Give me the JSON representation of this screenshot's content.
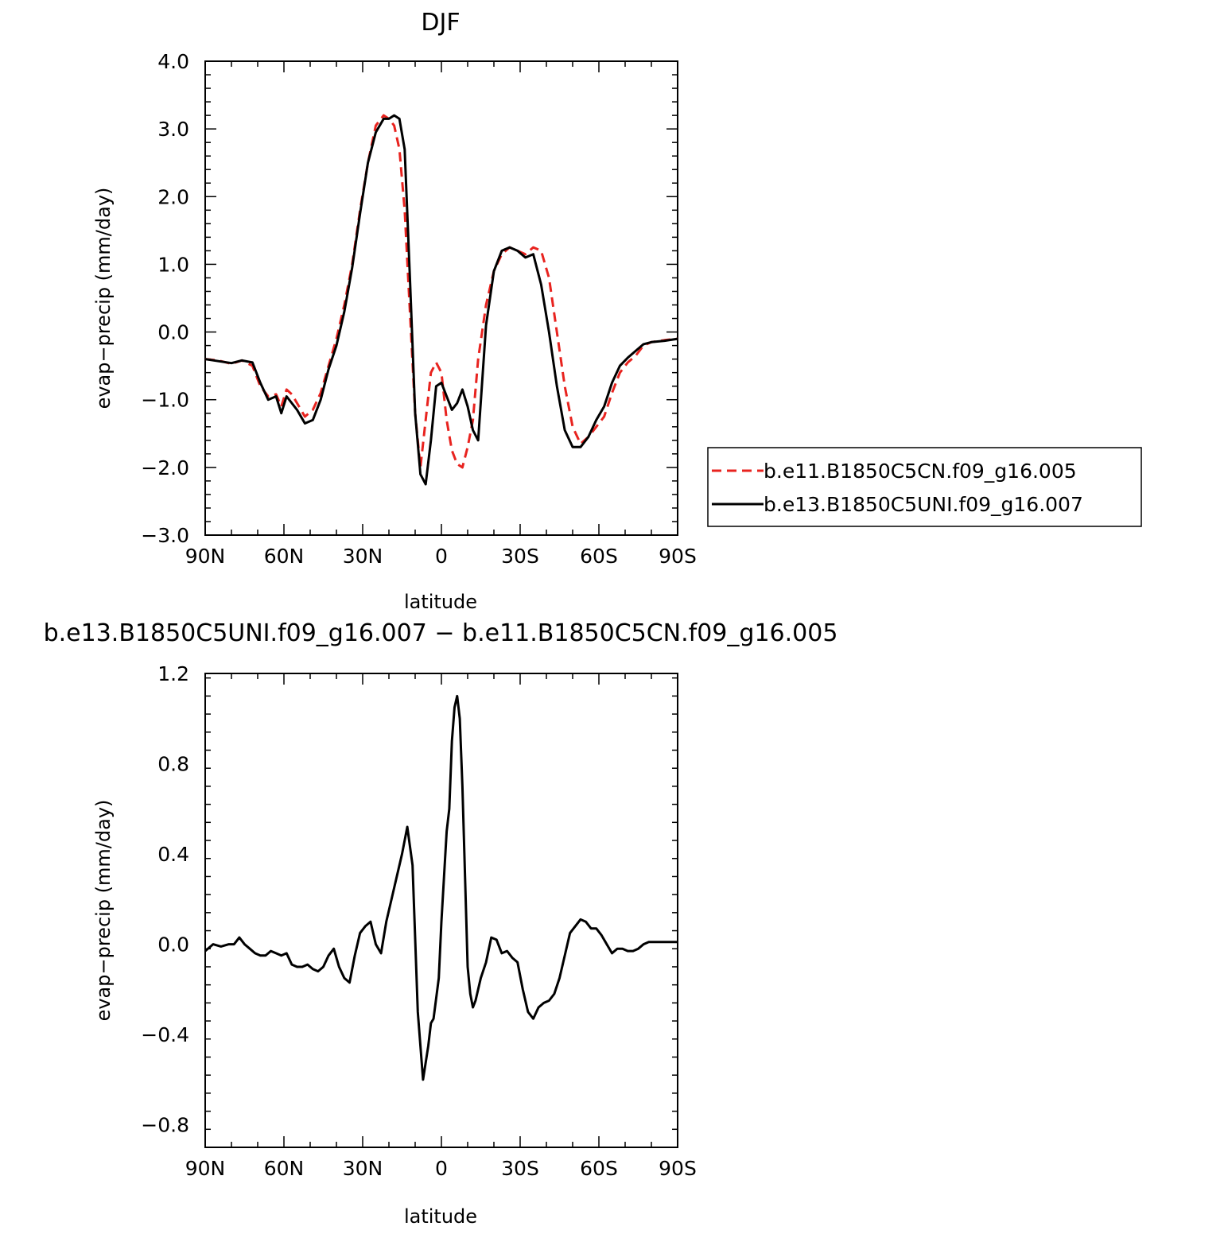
{
  "chart_data": [
    {
      "type": "line",
      "title": "DJF",
      "xlabel": "latitude",
      "ylabel": "evap−precip (mm/day)",
      "xlim": [
        90,
        -90
      ],
      "ylim": [
        -3.0,
        4.0
      ],
      "yticks": [
        -3.0,
        -2.0,
        -1.0,
        0.0,
        1.0,
        2.0,
        3.0,
        4.0
      ],
      "ytick_labels": [
        "−3.0",
        "−2.0",
        "−1.0",
        "0.0",
        "1.0",
        "2.0",
        "3.0",
        "4.0"
      ],
      "xticks": [
        90,
        60,
        30,
        0,
        -30,
        -60,
        -90
      ],
      "xtick_labels": [
        "90N",
        "60N",
        "30N",
        "0",
        "30S",
        "60S",
        "90S"
      ],
      "grid": false,
      "legend_position": "right",
      "series": [
        {
          "name": "b.e11.B1850C5CN.f09_g16.005",
          "color": "#e8231f",
          "dash": "dashed",
          "x": [
            90,
            85,
            80,
            76,
            72,
            69,
            66,
            63,
            61,
            59,
            57,
            55,
            52,
            49,
            46,
            43,
            40,
            37,
            34,
            31,
            28,
            25,
            22,
            20,
            18,
            16,
            14,
            12,
            10,
            8,
            6,
            4,
            2,
            0,
            -2,
            -4,
            -6,
            -8,
            -10,
            -12,
            -14,
            -17,
            -20,
            -23,
            -26,
            -29,
            -32,
            -35,
            -38,
            -41,
            -44,
            -47,
            -50,
            -53,
            -56,
            -59,
            -62,
            -65,
            -68,
            -71,
            -74,
            -77,
            -80,
            -85,
            -90
          ],
          "y": [
            -0.4,
            -0.42,
            -0.47,
            -0.42,
            -0.5,
            -0.8,
            -0.95,
            -0.92,
            -1.1,
            -0.85,
            -0.92,
            -1.05,
            -1.25,
            -1.15,
            -0.9,
            -0.5,
            -0.1,
            0.4,
            1.0,
            1.8,
            2.5,
            3.05,
            3.2,
            3.15,
            3.05,
            2.7,
            1.8,
            0.3,
            -1.2,
            -2.0,
            -1.3,
            -0.6,
            -0.45,
            -0.6,
            -1.3,
            -1.75,
            -1.95,
            -2.0,
            -1.7,
            -1.3,
            -0.4,
            0.4,
            0.9,
            1.15,
            1.25,
            1.2,
            1.15,
            1.25,
            1.2,
            0.8,
            0.0,
            -0.8,
            -1.4,
            -1.65,
            -1.55,
            -1.4,
            -1.25,
            -0.9,
            -0.6,
            -0.45,
            -0.35,
            -0.2,
            -0.15,
            -0.12,
            -0.1
          ]
        },
        {
          "name": "b.e13.B1850C5UNI.f09_g16.007",
          "color": "#000000",
          "dash": "solid",
          "x": [
            90,
            85,
            80,
            76,
            72,
            69,
            66,
            63,
            61,
            59,
            57,
            55,
            52,
            49,
            46,
            43,
            40,
            37,
            34,
            31,
            28,
            25,
            22,
            20,
            18,
            16,
            14,
            12,
            10,
            8,
            6,
            4,
            2,
            0,
            -2,
            -4,
            -6,
            -8,
            -10,
            -12,
            -14,
            -17,
            -20,
            -23,
            -26,
            -29,
            -32,
            -35,
            -38,
            -41,
            -44,
            -47,
            -50,
            -53,
            -56,
            -59,
            -62,
            -65,
            -68,
            -71,
            -74,
            -77,
            -80,
            -85,
            -90
          ],
          "y": [
            -0.4,
            -0.43,
            -0.46,
            -0.42,
            -0.45,
            -0.75,
            -1.0,
            -0.95,
            -1.2,
            -0.95,
            -1.05,
            -1.15,
            -1.35,
            -1.3,
            -1.0,
            -0.55,
            -0.2,
            0.3,
            0.95,
            1.75,
            2.5,
            2.95,
            3.15,
            3.15,
            3.2,
            3.15,
            2.7,
            0.8,
            -1.2,
            -2.1,
            -2.25,
            -1.6,
            -0.8,
            -0.75,
            -0.95,
            -1.15,
            -1.05,
            -0.85,
            -1.1,
            -1.45,
            -1.6,
            0.1,
            0.9,
            1.2,
            1.25,
            1.2,
            1.1,
            1.15,
            0.7,
            0.0,
            -0.8,
            -1.45,
            -1.7,
            -1.7,
            -1.55,
            -1.3,
            -1.1,
            -0.75,
            -0.5,
            -0.38,
            -0.28,
            -0.18,
            -0.15,
            -0.13,
            -0.1
          ]
        }
      ]
    },
    {
      "type": "line",
      "title": "b.e13.B1850C5UNI.f09_g16.007 − b.e11.B1850C5CN.f09_g16.005",
      "xlabel": "latitude",
      "ylabel": "evap−precip (mm/day)",
      "xlim": [
        90,
        -90
      ],
      "ylim": [
        -0.9,
        1.2
      ],
      "yticks": [
        -0.8,
        -0.4,
        0.0,
        0.4,
        0.8,
        1.2
      ],
      "ytick_labels": [
        "−0.8",
        "−0.4",
        "0.0",
        "0.4",
        "0.8",
        "1.2"
      ],
      "xticks": [
        90,
        60,
        30,
        0,
        -30,
        -60,
        -90
      ],
      "xtick_labels": [
        "90N",
        "60N",
        "30N",
        "0",
        "30S",
        "60S",
        "90S"
      ],
      "grid": false,
      "series": [
        {
          "color": "#000000",
          "dash": "solid",
          "x": [
            90,
            87,
            84,
            81,
            79,
            77,
            75,
            73,
            71,
            69,
            67,
            65,
            63,
            61,
            59,
            57,
            55,
            53,
            51,
            49,
            47,
            45,
            43,
            41,
            39,
            37,
            35,
            33,
            31,
            29,
            27,
            25,
            23,
            21,
            19,
            17,
            15,
            13,
            11,
            9,
            7,
            5,
            4,
            3,
            1,
            0,
            -1,
            -2,
            -3,
            -4,
            -5,
            -6,
            -7,
            -8,
            -9,
            -10,
            -11,
            -12,
            -13,
            -14,
            -15,
            -17,
            -19,
            -21,
            -23,
            -25,
            -27,
            -29,
            -31,
            -33,
            -35,
            -37,
            -39,
            -41,
            -43,
            -45,
            -47,
            -49,
            -51,
            -53,
            -55,
            -57,
            -59,
            -61,
            -63,
            -65,
            -67,
            -69,
            -71,
            -73,
            -75,
            -77,
            -79,
            -81,
            -83,
            -85,
            -87,
            -89,
            -90
          ],
          "y": [
            -0.03,
            0.0,
            -0.01,
            0.0,
            0.0,
            0.03,
            0.0,
            -0.02,
            -0.04,
            -0.05,
            -0.05,
            -0.03,
            -0.04,
            -0.05,
            -0.04,
            -0.09,
            -0.1,
            -0.1,
            -0.09,
            -0.11,
            -0.12,
            -0.1,
            -0.05,
            -0.02,
            -0.1,
            -0.15,
            -0.17,
            -0.05,
            0.05,
            0.08,
            0.1,
            0.0,
            -0.04,
            0.1,
            0.2,
            0.3,
            0.4,
            0.52,
            0.35,
            -0.3,
            -0.6,
            -0.45,
            -0.35,
            -0.33,
            -0.15,
            0.1,
            0.3,
            0.5,
            0.6,
            0.9,
            1.05,
            1.1,
            1.0,
            0.7,
            0.3,
            -0.1,
            -0.22,
            -0.28,
            -0.25,
            -0.2,
            -0.15,
            -0.08,
            0.03,
            0.02,
            -0.04,
            -0.03,
            -0.06,
            -0.08,
            -0.2,
            -0.3,
            -0.33,
            -0.28,
            -0.26,
            -0.25,
            -0.22,
            -0.15,
            -0.05,
            0.05,
            0.08,
            0.11,
            0.1,
            0.07,
            0.07,
            0.04,
            0.0,
            -0.04,
            -0.02,
            -0.02,
            -0.03,
            -0.03,
            -0.02,
            0.0,
            0.01,
            0.01,
            0.01,
            0.01,
            0.01,
            0.01,
            0.01
          ]
        }
      ]
    }
  ]
}
